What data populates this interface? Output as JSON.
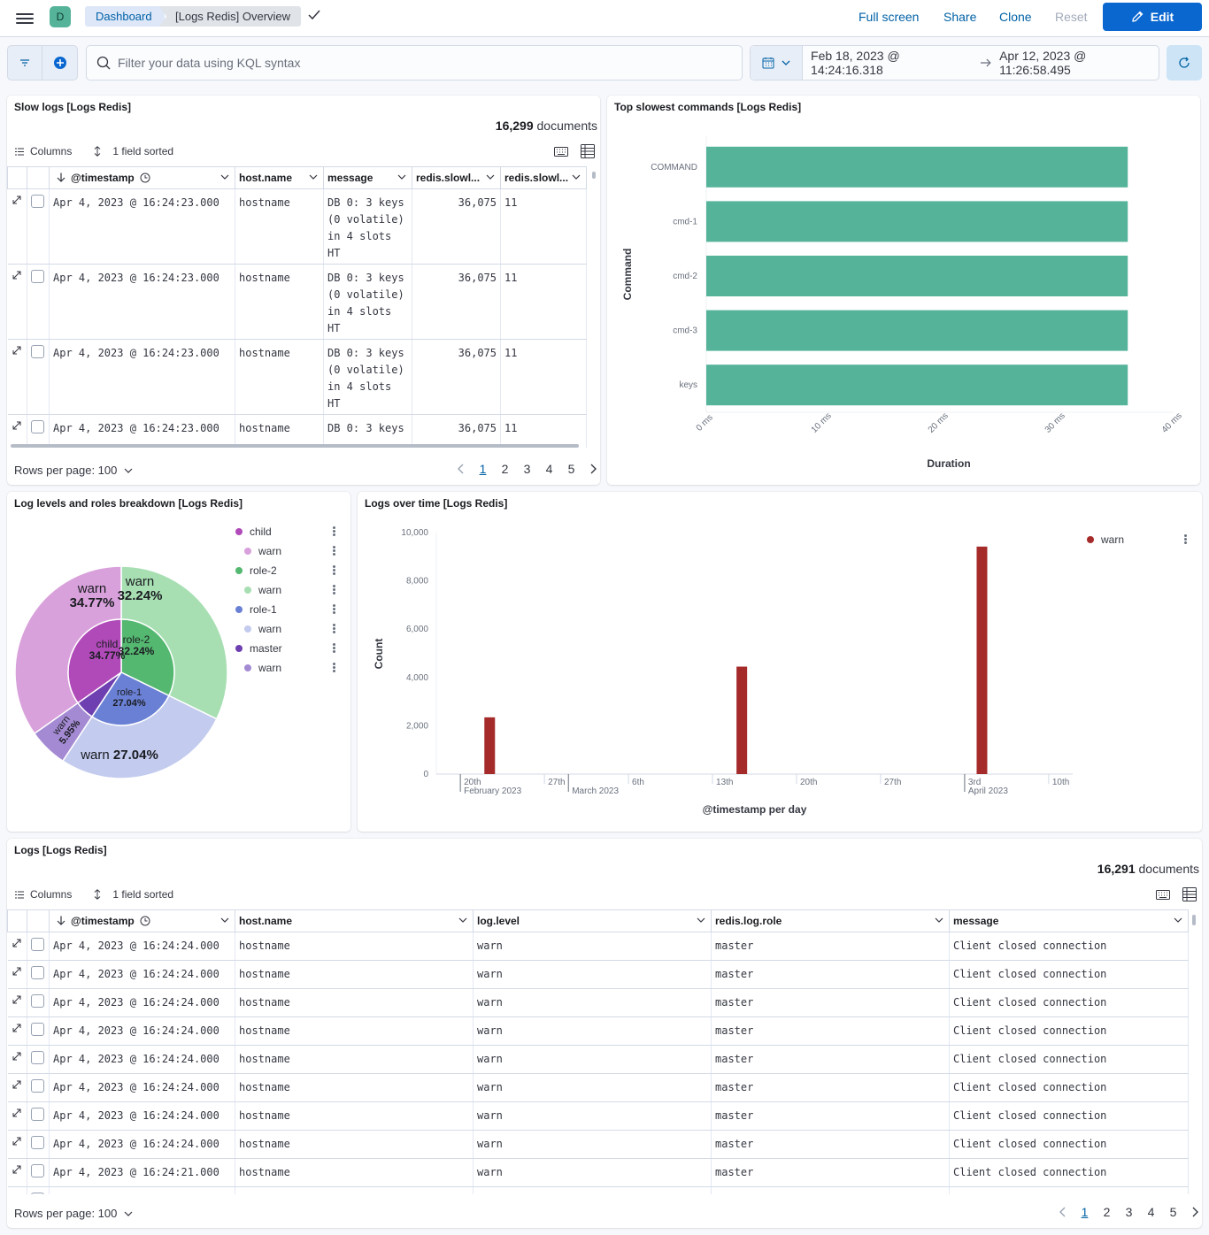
{
  "header": {
    "space_initial": "D",
    "breadcrumb_root": "Dashboard",
    "breadcrumb_current": "[Logs Redis] Overview",
    "full_screen": "Full screen",
    "share": "Share",
    "clone": "Clone",
    "reset": "Reset",
    "edit": "Edit"
  },
  "query": {
    "placeholder": "Filter your data using KQL syntax",
    "start": "Feb 18, 2023 @ 14:24:16.318",
    "end": "Apr 12, 2023 @ 11:26:58.495"
  },
  "slow_logs": {
    "title": "Slow logs [Logs Redis]",
    "count": "16,299",
    "count_label": "documents",
    "columns_label": "Columns",
    "sorted_label": "1 field sorted",
    "headers": [
      "@timestamp",
      "host.name",
      "message",
      "redis.slowl...",
      "redis.slowl..."
    ],
    "rows": [
      {
        "ts": "Apr 4, 2023 @ 16:24:23.000",
        "host": "hostname",
        "msg": [
          "DB 0: 3 keys",
          "(0 volatile)",
          "in 4 slots",
          "HT"
        ],
        "dur": "36,075",
        "id": "11"
      },
      {
        "ts": "Apr 4, 2023 @ 16:24:23.000",
        "host": "hostname",
        "msg": [
          "DB 0: 3 keys",
          "(0 volatile)",
          "in 4 slots",
          "HT"
        ],
        "dur": "36,075",
        "id": "11"
      },
      {
        "ts": "Apr 4, 2023 @ 16:24:23.000",
        "host": "hostname",
        "msg": [
          "DB 0: 3 keys",
          "(0 volatile)",
          "in 4 slots",
          "HT"
        ],
        "dur": "36,075",
        "id": "11"
      },
      {
        "ts": "Apr 4, 2023 @ 16:24:23.000",
        "host": "hostname",
        "msg": [
          "DB 0: 3 keys"
        ],
        "dur": "36,075",
        "id": "11"
      }
    ],
    "rows_per_page": "Rows per page: 100",
    "pages": [
      "1",
      "2",
      "3",
      "4",
      "5"
    ]
  },
  "top_slowest": {
    "title": "Top slowest commands [Logs Redis]",
    "ylabel": "Command",
    "xlabel": "Duration"
  },
  "log_levels": {
    "title": "Log levels and roles breakdown [Logs Redis]",
    "legend": [
      {
        "label": "child",
        "color": "#b04ab8",
        "indent": false
      },
      {
        "label": "warn",
        "color": "#d9a1db",
        "indent": true
      },
      {
        "label": "role-2",
        "color": "#54b870",
        "indent": false
      },
      {
        "label": "warn",
        "color": "#a7dfb2",
        "indent": true
      },
      {
        "label": "role-1",
        "color": "#6a80d4",
        "indent": false
      },
      {
        "label": "warn",
        "color": "#c3cbee",
        "indent": true
      },
      {
        "label": "master",
        "color": "#6e3fb0",
        "indent": false
      },
      {
        "label": "warn",
        "color": "#a48ad3",
        "indent": true
      }
    ],
    "inner_labels": {
      "child": "child",
      "child_pct": "34.77%",
      "role2": "role-2",
      "role2_pct": "32.24%",
      "role1": "role-1",
      "role1_pct": "27.04%"
    },
    "outer_labels": {
      "w1": "warn",
      "w1_pct": "34.77%",
      "w2": "warn",
      "w2_pct": "32.24%",
      "w3": "warn",
      "w3_pct": "27.04%",
      "w4": "warn",
      "w4_pct": "5.95%"
    }
  },
  "logs_over_time": {
    "title": "Logs over time [Logs Redis]",
    "legend": "warn",
    "ylabel": "Count",
    "xlabel": "@timestamp per day",
    "x_ticks": [
      {
        "label": "20th",
        "sub": "February 2023"
      },
      {
        "label": "27th",
        "sub": ""
      },
      {
        "label": "",
        "sub": "March 2023"
      },
      {
        "label": "6th",
        "sub": ""
      },
      {
        "label": "13th",
        "sub": ""
      },
      {
        "label": "20th",
        "sub": ""
      },
      {
        "label": "27th",
        "sub": ""
      },
      {
        "label": "3rd",
        "sub": "April 2023"
      },
      {
        "label": "10th",
        "sub": ""
      }
    ]
  },
  "logs": {
    "title": "Logs [Logs Redis]",
    "count": "16,291",
    "count_label": "documents",
    "columns_label": "Columns",
    "sorted_label": "1 field sorted",
    "headers": [
      "@timestamp",
      "host.name",
      "log.level",
      "redis.log.role",
      "message"
    ],
    "rows": [
      {
        "ts": "Apr 4, 2023 @ 16:24:24.000",
        "host": "hostname",
        "level": "warn",
        "role": "master",
        "msg": "Client closed connection"
      },
      {
        "ts": "Apr 4, 2023 @ 16:24:24.000",
        "host": "hostname",
        "level": "warn",
        "role": "master",
        "msg": "Client closed connection"
      },
      {
        "ts": "Apr 4, 2023 @ 16:24:24.000",
        "host": "hostname",
        "level": "warn",
        "role": "master",
        "msg": "Client closed connection"
      },
      {
        "ts": "Apr 4, 2023 @ 16:24:24.000",
        "host": "hostname",
        "level": "warn",
        "role": "master",
        "msg": "Client closed connection"
      },
      {
        "ts": "Apr 4, 2023 @ 16:24:24.000",
        "host": "hostname",
        "level": "warn",
        "role": "master",
        "msg": "Client closed connection"
      },
      {
        "ts": "Apr 4, 2023 @ 16:24:24.000",
        "host": "hostname",
        "level": "warn",
        "role": "master",
        "msg": "Client closed connection"
      },
      {
        "ts": "Apr 4, 2023 @ 16:24:24.000",
        "host": "hostname",
        "level": "warn",
        "role": "master",
        "msg": "Client closed connection"
      },
      {
        "ts": "Apr 4, 2023 @ 16:24:24.000",
        "host": "hostname",
        "level": "warn",
        "role": "master",
        "msg": "Client closed connection"
      },
      {
        "ts": "Apr 4, 2023 @ 16:24:21.000",
        "host": "hostname",
        "level": "warn",
        "role": "master",
        "msg": "Client closed connection"
      }
    ],
    "rows_per_page": "Rows per page: 100",
    "pages": [
      "1",
      "2",
      "3",
      "4",
      "5"
    ]
  },
  "chart_data": [
    {
      "type": "bar",
      "orientation": "horizontal",
      "title": "Top slowest commands [Logs Redis]",
      "ylabel": "Command",
      "xlabel": "Duration",
      "categories": [
        "COMMAND",
        "cmd-1",
        "cmd-2",
        "cmd-3",
        "keys"
      ],
      "values": [
        36.075,
        36.075,
        36.075,
        36.075,
        36.075
      ],
      "x_ticks": [
        "0 ms",
        "10 ms",
        "20 ms",
        "30 ms",
        "40 ms"
      ],
      "xlim": [
        0,
        40
      ],
      "color": "#54b399"
    },
    {
      "type": "pie",
      "title": "Log levels and roles breakdown [Logs Redis]",
      "inner": [
        {
          "name": "child",
          "value": 34.77,
          "color": "#b04ab8"
        },
        {
          "name": "role-2",
          "value": 32.24,
          "color": "#54b870"
        },
        {
          "name": "role-1",
          "value": 27.04,
          "color": "#6a80d4"
        },
        {
          "name": "master",
          "value": 5.95,
          "color": "#6e3fb0"
        }
      ],
      "outer": [
        {
          "name": "warn",
          "value": 34.77,
          "color": "#d9a1db"
        },
        {
          "name": "warn",
          "value": 32.24,
          "color": "#a7dfb2"
        },
        {
          "name": "warn",
          "value": 27.04,
          "color": "#c3cbee"
        },
        {
          "name": "warn",
          "value": 5.95,
          "color": "#a48ad3"
        }
      ]
    },
    {
      "type": "bar",
      "title": "Logs over time [Logs Redis]",
      "xlabel": "@timestamp per day",
      "ylabel": "Count",
      "series": [
        {
          "name": "warn",
          "color": "#a52a2a",
          "points": [
            {
              "x": "2023-02-22",
              "y": 2350
            },
            {
              "x": "2023-03-15",
              "y": 4450
            },
            {
              "x": "2023-04-04",
              "y": 9420
            }
          ]
        }
      ],
      "y_ticks": [
        "0",
        "2,000",
        "4,000",
        "6,000",
        "8,000",
        "10,000"
      ],
      "ylim": [
        0,
        10000
      ],
      "xlim": [
        "2023-02-18",
        "2023-04-12"
      ]
    }
  ]
}
